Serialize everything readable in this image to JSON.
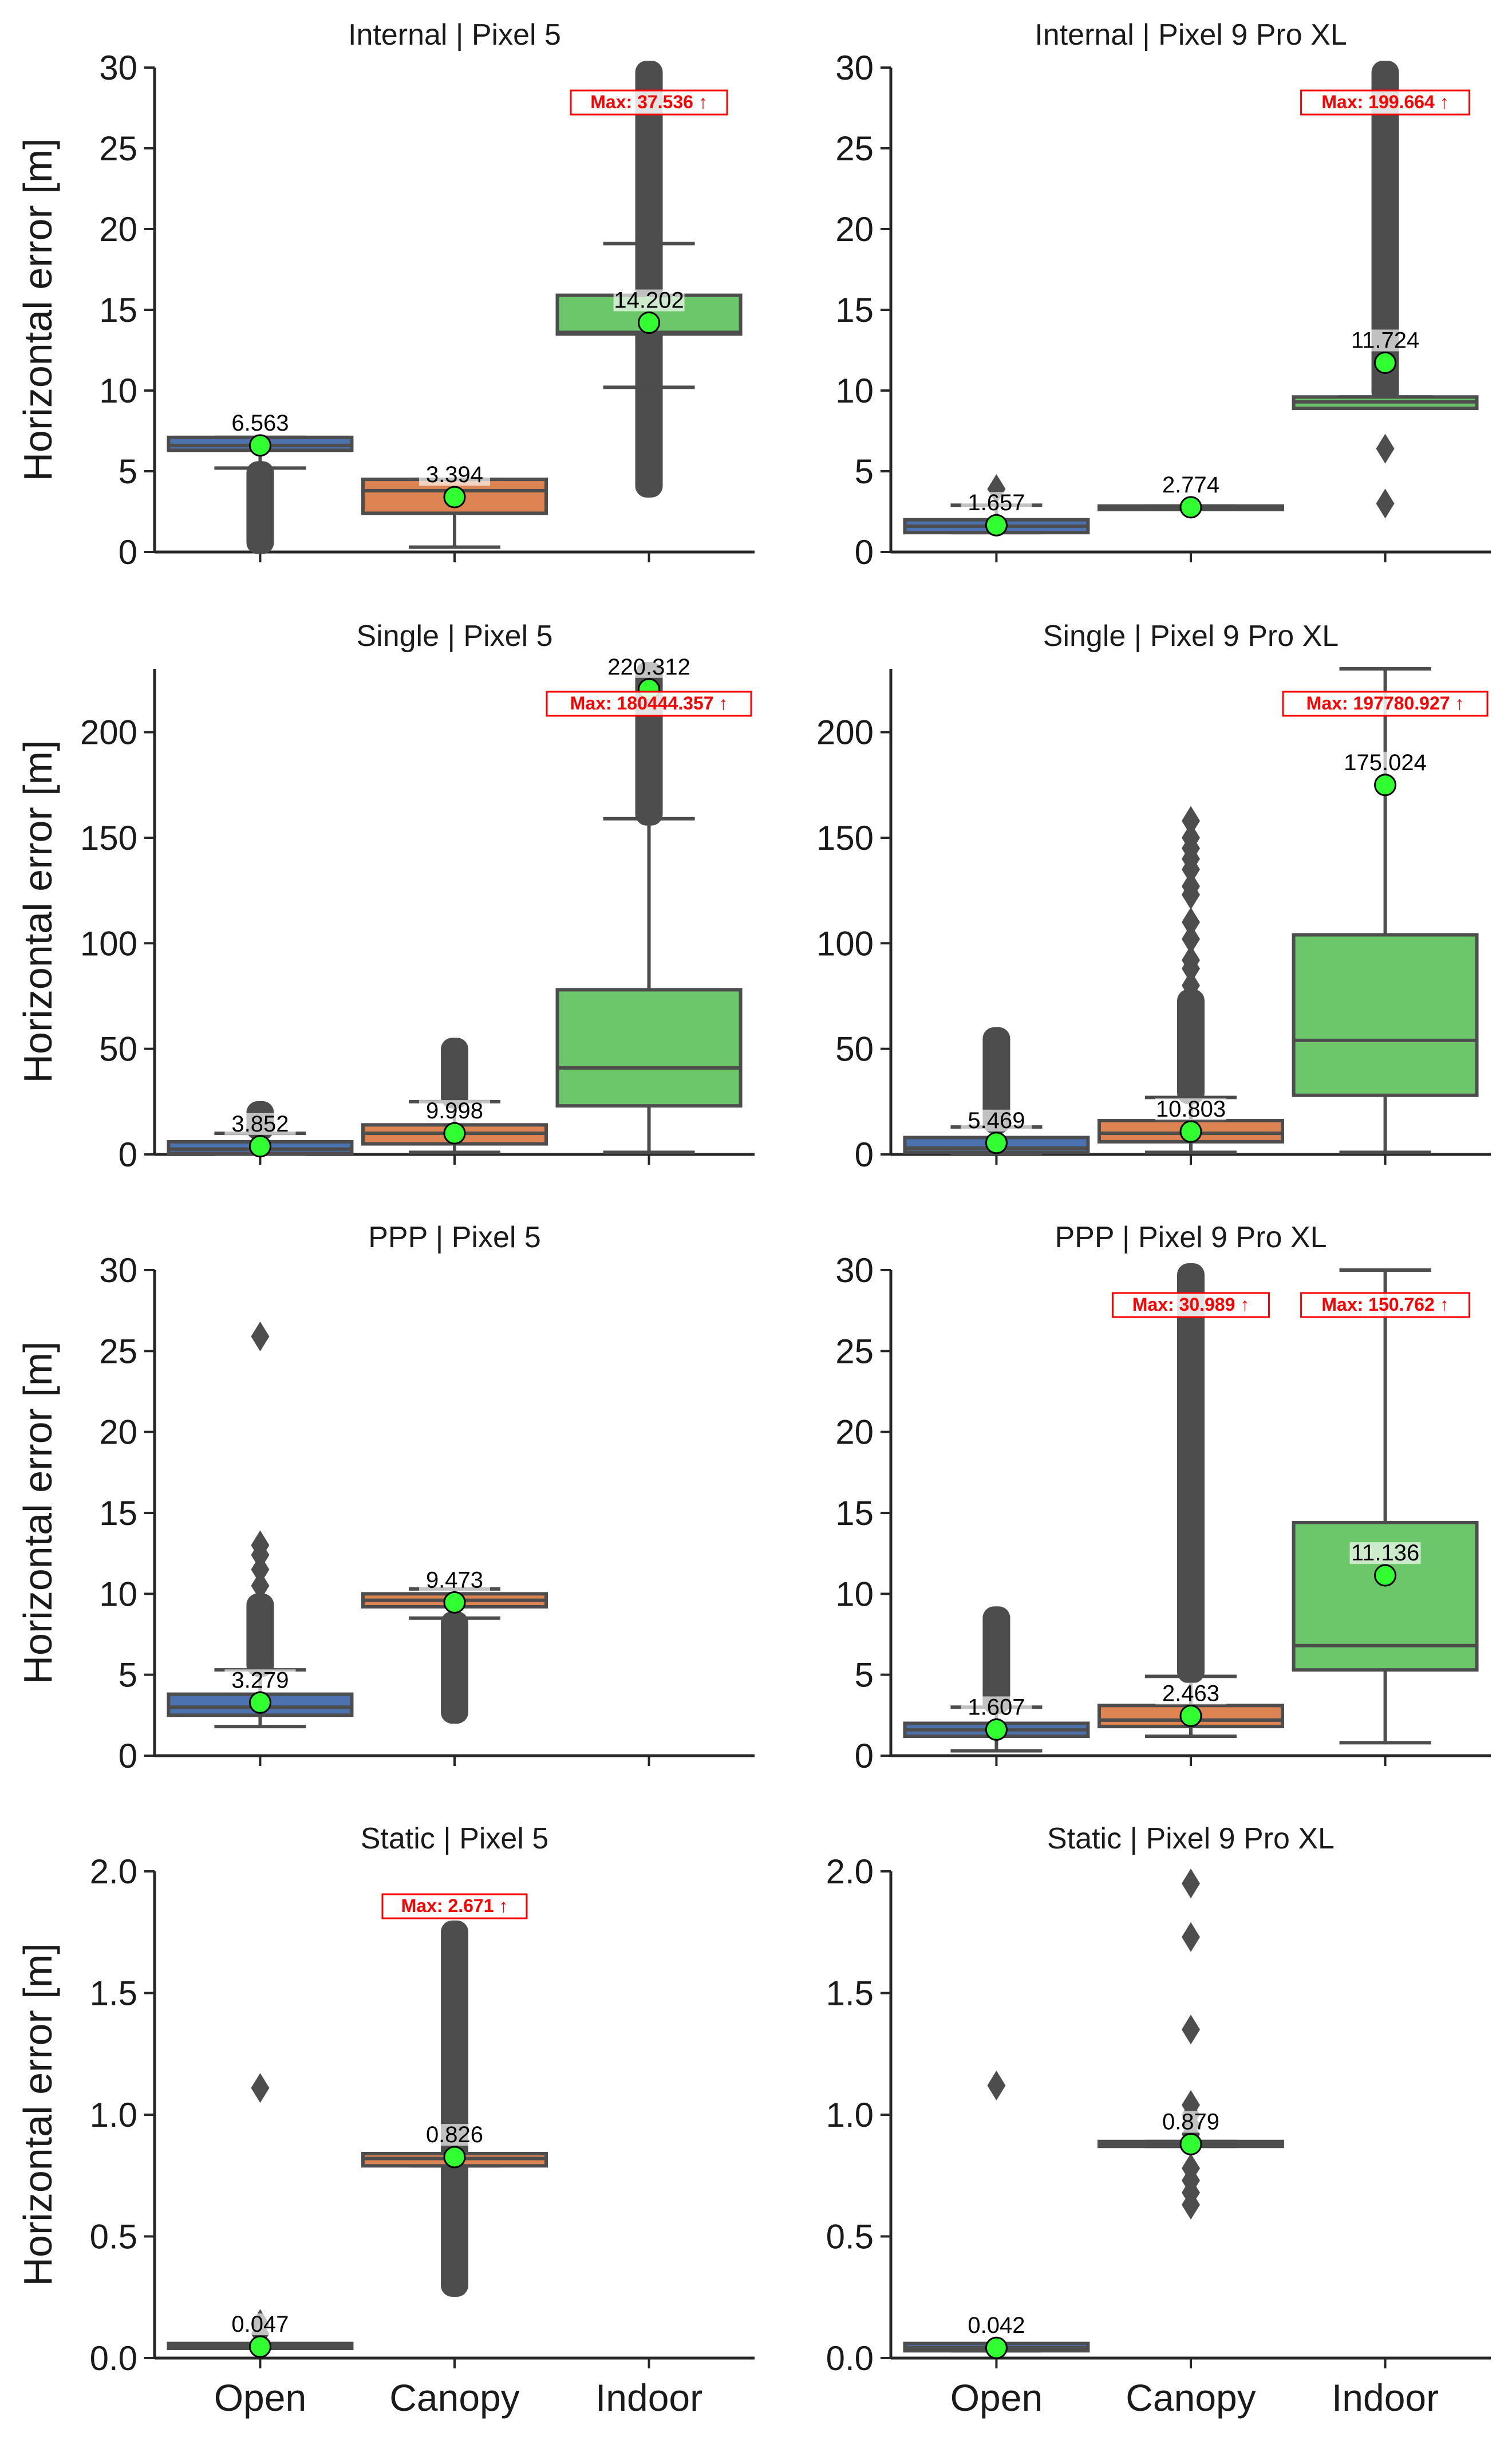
{
  "colors": {
    "open": "#4c72b0",
    "canopy": "#dd8452",
    "indoor": "#6cc66a",
    "line": "#4d4d4d",
    "mean": "#32ff32",
    "max": "#ff0000"
  },
  "chart_data": [
    {
      "type": "box",
      "title": "Internal | Pixel 5",
      "ylabel": "Horizontal error [m]",
      "ylim": [
        0,
        30
      ],
      "yticks": [
        "0",
        "5",
        "10",
        "15",
        "20",
        "25",
        "30"
      ],
      "categories": [
        "Open",
        "Canopy",
        "Indoor"
      ],
      "boxes": [
        {
          "category": "Open",
          "q1": 6.3,
          "median": 6.6,
          "q3": 7.1,
          "wlo": 5.2,
          "whi": 7.1,
          "outlier_range": [
            0.3,
            5.2
          ],
          "mean": 6.6,
          "mean_label": "6.563"
        },
        {
          "category": "Canopy",
          "q1": 2.4,
          "median": 3.8,
          "q3": 4.5,
          "wlo": 0.3,
          "whi": 4.5,
          "mean": 3.4,
          "mean_label": "3.394"
        },
        {
          "category": "Indoor",
          "q1": 13.5,
          "median": 13.6,
          "q3": 15.9,
          "wlo": 10.2,
          "whi": 19.1,
          "outlier_range": [
            3.8,
            30
          ],
          "mean": 14.2,
          "mean_label": "14.202",
          "max_label": "Max: 37.536 ↑"
        }
      ]
    },
    {
      "type": "box",
      "title": "Internal | Pixel 9 Pro XL",
      "ylabel": "",
      "ylim": [
        0,
        30
      ],
      "yticks": [
        "0",
        "5",
        "10",
        "15",
        "20",
        "25",
        "30"
      ],
      "categories": [
        "Open",
        "Canopy",
        "Indoor"
      ],
      "boxes": [
        {
          "category": "Open",
          "q1": 1.2,
          "median": 1.6,
          "q3": 2.0,
          "wlo": 1.2,
          "whi": 2.9,
          "outliers": [
            3.9
          ],
          "mean": 1.66,
          "mean_label": "1.657"
        },
        {
          "category": "Canopy",
          "q1": 2.75,
          "median": 2.8,
          "q3": 2.85,
          "wlo": 2.75,
          "whi": 2.85,
          "mean": 2.77,
          "mean_label": "2.774"
        },
        {
          "category": "Indoor",
          "q1": 8.9,
          "median": 9.3,
          "q3": 9.6,
          "wlo": 8.9,
          "whi": 9.6,
          "outlier_range": [
            9.6,
            30
          ],
          "outliers": [
            6.4,
            3.0
          ],
          "mean": 11.72,
          "mean_label": "11.724",
          "max_label": "Max: 199.664 ↑"
        }
      ]
    },
    {
      "type": "box",
      "title": "Single | Pixel 5",
      "ylabel": "Horizontal error [m]",
      "ylim": [
        0,
        230
      ],
      "yticks": [
        "0",
        "50",
        "100",
        "150",
        "200"
      ],
      "categories": [
        "Open",
        "Canopy",
        "Indoor"
      ],
      "boxes": [
        {
          "category": "Open",
          "q1": 0.5,
          "median": 2.5,
          "q3": 6,
          "wlo": 0.3,
          "whi": 10,
          "outlier_range": [
            10,
            22
          ],
          "mean": 3.85,
          "mean_label": "3.852"
        },
        {
          "category": "Canopy",
          "q1": 5,
          "median": 10,
          "q3": 14,
          "wlo": 1,
          "whi": 25,
          "outlier_range": [
            25,
            52
          ],
          "mean": 10,
          "mean_label": "9.998"
        },
        {
          "category": "Indoor",
          "q1": 23,
          "median": 41,
          "q3": 78,
          "wlo": 1,
          "whi": 159,
          "outlier_range": [
            159,
            230
          ],
          "mean": 220.3,
          "mean_label": "220.312",
          "max_label": "Max: 180444.357 ↑"
        }
      ]
    },
    {
      "type": "box",
      "title": "Single | Pixel 9 Pro XL",
      "ylabel": "",
      "ylim": [
        0,
        230
      ],
      "yticks": [
        "0",
        "50",
        "100",
        "150",
        "200"
      ],
      "categories": [
        "Open",
        "Canopy",
        "Indoor"
      ],
      "boxes": [
        {
          "category": "Open",
          "q1": 1,
          "median": 3,
          "q3": 8,
          "wlo": 0.5,
          "whi": 13,
          "outlier_range": [
            13,
            57
          ],
          "mean": 5.47,
          "mean_label": "5.469"
        },
        {
          "category": "Canopy",
          "q1": 6,
          "median": 10,
          "q3": 16,
          "wlo": 1,
          "whi": 27,
          "outlier_range": [
            27,
            75
          ],
          "outliers": [
            80,
            88,
            92,
            102,
            110,
            123,
            127,
            135,
            140,
            145,
            150,
            158
          ],
          "mean": 10.8,
          "mean_label": "10.803"
        },
        {
          "category": "Indoor",
          "q1": 28,
          "median": 54,
          "q3": 104,
          "wlo": 1,
          "whi": 230,
          "mean": 175,
          "mean_label": "175.024",
          "max_label": "Max: 197780.927 ↑"
        }
      ]
    },
    {
      "type": "box",
      "title": "PPP | Pixel 5",
      "ylabel": "Horizontal error [m]",
      "ylim": [
        0,
        30
      ],
      "yticks": [
        "0",
        "5",
        "10",
        "15",
        "20",
        "25",
        "30"
      ],
      "categories": [
        "Open",
        "Canopy",
        "Indoor"
      ],
      "boxes": [
        {
          "category": "Open",
          "q1": 2.5,
          "median": 3.0,
          "q3": 3.8,
          "wlo": 1.8,
          "whi": 5.3,
          "outlier_range": [
            5.3,
            9.6
          ],
          "outliers": [
            10.5,
            11.5,
            12.4,
            13.0,
            25.9
          ],
          "mean": 3.28,
          "mean_label": "3.279"
        },
        {
          "category": "Canopy",
          "q1": 9.2,
          "median": 9.6,
          "q3": 10.0,
          "wlo": 8.5,
          "whi": 10.3,
          "outlier_range": [
            2.4,
            8.5
          ],
          "mean": 9.47,
          "mean_label": "9.473"
        }
      ]
    },
    {
      "type": "box",
      "title": "PPP | Pixel 9 Pro XL",
      "ylabel": "",
      "ylim": [
        0,
        30
      ],
      "yticks": [
        "0",
        "5",
        "10",
        "15",
        "20",
        "25",
        "30"
      ],
      "categories": [
        "Open",
        "Canopy",
        "Indoor"
      ],
      "boxes": [
        {
          "category": "Open",
          "q1": 1.2,
          "median": 1.6,
          "q3": 2.0,
          "wlo": 0.3,
          "whi": 3.0,
          "outlier_range": [
            3.0,
            8.8
          ],
          "mean": 1.61,
          "mean_label": "1.607"
        },
        {
          "category": "Canopy",
          "q1": 1.8,
          "median": 2.2,
          "q3": 3.1,
          "wlo": 1.2,
          "whi": 4.9,
          "outlier_range": [
            4.9,
            30
          ],
          "mean": 2.46,
          "mean_label": "2.463",
          "max_label": "Max: 30.989 ↑"
        },
        {
          "category": "Indoor",
          "q1": 5.3,
          "median": 6.8,
          "q3": 14.4,
          "wlo": 0.8,
          "whi": 30,
          "mean": 11.14,
          "mean_label": "11.136",
          "max_label": "Max: 150.762 ↑"
        }
      ]
    },
    {
      "type": "box",
      "title": "Static | Pixel 5",
      "ylabel": "Horizontal error [m]",
      "ylim": [
        0,
        2.0
      ],
      "yticks": [
        "0.0",
        "0.5",
        "1.0",
        "1.5",
        "2.0"
      ],
      "categories": [
        "Open",
        "Canopy",
        "Indoor"
      ],
      "boxes": [
        {
          "category": "Open",
          "q1": 0.04,
          "median": 0.047,
          "q3": 0.06,
          "wlo": 0.04,
          "whi": 0.06,
          "outliers": [
            0.1,
            0.14,
            1.11
          ],
          "mean": 0.047,
          "mean_label": "0.047"
        },
        {
          "category": "Canopy",
          "q1": 0.79,
          "median": 0.82,
          "q3": 0.84,
          "wlo": 0.79,
          "whi": 0.84,
          "outlier_range": [
            0.28,
            1.77
          ],
          "mean": 0.826,
          "mean_label": "0.826",
          "max_label": "Max: 2.671 ↑"
        }
      ]
    },
    {
      "type": "box",
      "title": "Static | Pixel 9 Pro XL",
      "ylabel": "",
      "ylim": [
        0,
        2.0
      ],
      "yticks": [
        "0.0",
        "0.5",
        "1.0",
        "1.5",
        "2.0"
      ],
      "categories": [
        "Open",
        "Canopy",
        "Indoor"
      ],
      "boxes": [
        {
          "category": "Open",
          "q1": 0.03,
          "median": 0.042,
          "q3": 0.06,
          "wlo": 0.03,
          "whi": 0.06,
          "outliers": [
            1.12
          ],
          "mean": 0.042,
          "mean_label": "0.042"
        },
        {
          "category": "Canopy",
          "q1": 0.87,
          "median": 0.88,
          "q3": 0.89,
          "wlo": 0.87,
          "whi": 0.89,
          "outliers": [
            0.63,
            0.68,
            0.73,
            0.78,
            0.92,
            0.96,
            1.0,
            1.04,
            1.35,
            1.73,
            1.95
          ],
          "mean": 0.879,
          "mean_label": "0.879"
        }
      ]
    }
  ]
}
